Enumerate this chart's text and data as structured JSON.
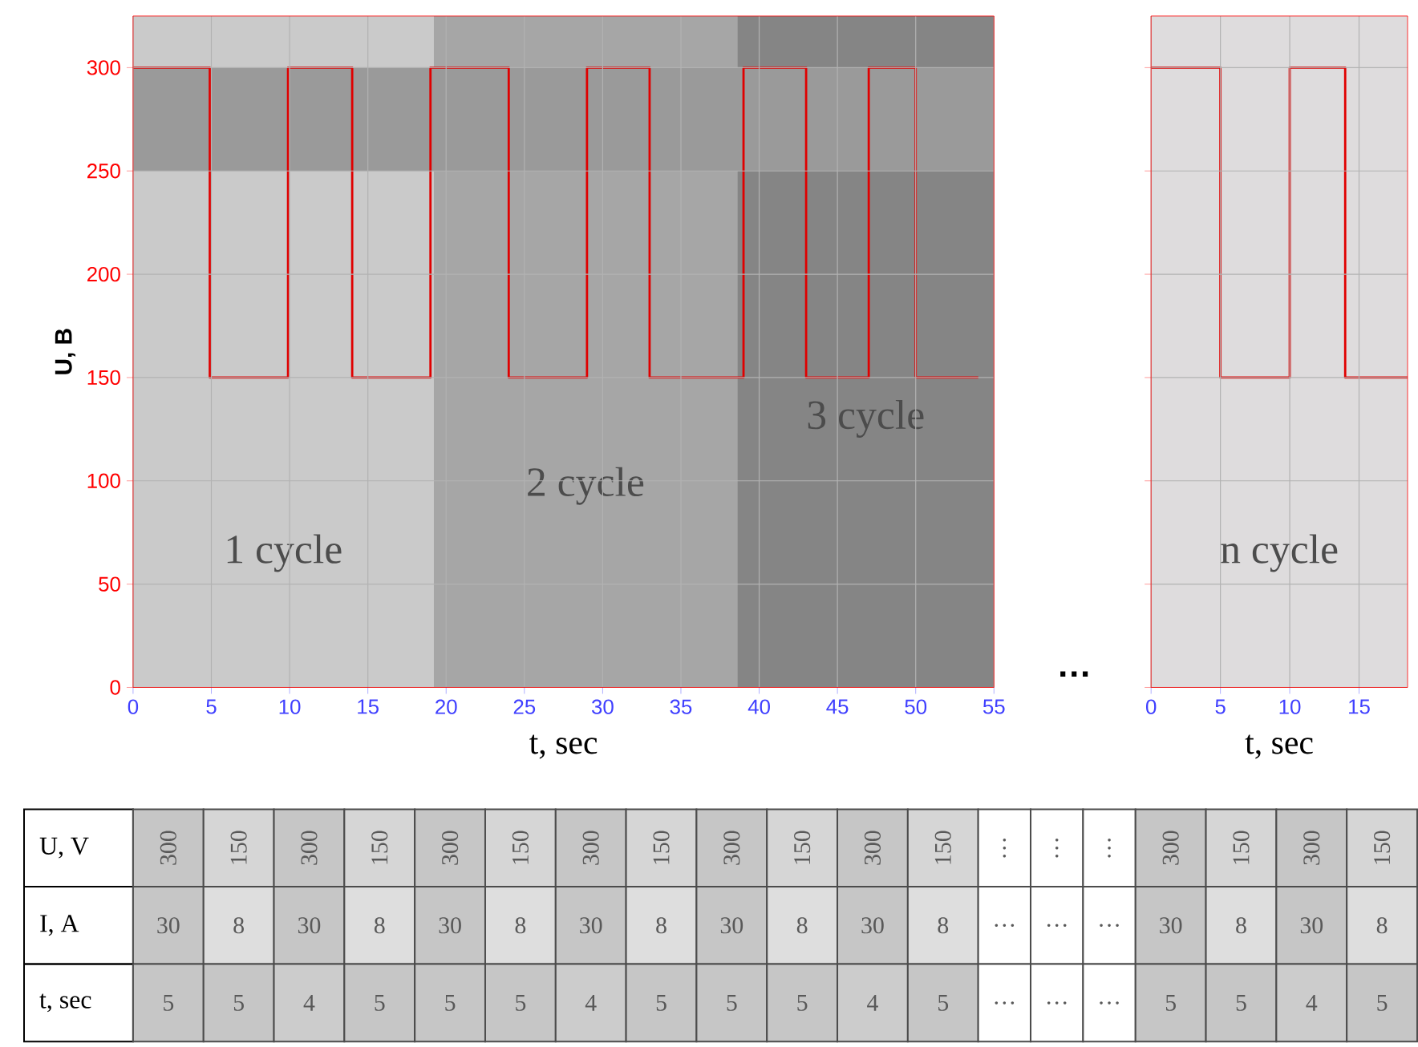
{
  "chart_data": [
    {
      "type": "step",
      "ylabel": "U, B",
      "xlabel": "t, sec",
      "xlim": [
        0,
        55
      ],
      "ylim": [
        0,
        325
      ],
      "xticks": [
        0,
        5,
        10,
        15,
        20,
        25,
        30,
        35,
        40,
        45,
        50,
        55
      ],
      "yticks": [
        0,
        50,
        100,
        150,
        200,
        250,
        300
      ],
      "grid": true,
      "bands": [
        {
          "axis": "x",
          "from": 0,
          "to": 19.2,
          "label": "1 cycle",
          "color": "#cacaca"
        },
        {
          "axis": "x",
          "from": 19.2,
          "to": 38.6,
          "label": "2 cycle",
          "color": "#a6a6a6"
        },
        {
          "axis": "x",
          "from": 38.6,
          "to": 55,
          "label": "3 cycle",
          "color": "#858585"
        },
        {
          "axis": "y",
          "from": 250,
          "to": 300,
          "color": "#9a9a9a"
        }
      ],
      "series": [
        {
          "color": "#e00000",
          "x": [
            0,
            4.9,
            9.9,
            14,
            19,
            24,
            29,
            33,
            39,
            43,
            47,
            50,
            54
          ],
          "values": [
            300,
            150,
            300,
            150,
            300,
            150,
            300,
            150,
            300,
            150,
            300,
            150,
            150
          ]
        }
      ]
    },
    {
      "type": "step",
      "xlabel": "t, sec",
      "xlim": [
        0,
        18.5
      ],
      "ylim": [
        0,
        325
      ],
      "xticks": [
        0,
        5,
        10,
        15
      ],
      "yticks": [
        0,
        50,
        100,
        150,
        200,
        250,
        300
      ],
      "grid": true,
      "tick_labels": "x",
      "annotations": [
        "…"
      ],
      "bands": [
        {
          "axis": "x",
          "from": 0,
          "to": 18.5,
          "label": "n cycle",
          "color": "#dedcdd"
        }
      ],
      "series": [
        {
          "color": "#e00000",
          "x": [
            0,
            5,
            10,
            14,
            18.5
          ],
          "values": [
            300,
            150,
            300,
            150,
            150
          ]
        }
      ]
    },
    {
      "type": "heatmap",
      "categories": [
        null,
        null,
        null,
        null,
        null,
        null,
        null,
        null,
        null,
        null,
        null,
        null,
        null,
        null,
        null,
        null,
        null,
        null,
        null
      ],
      "y_categories": [
        "U, V",
        "I, A",
        "t, sec"
      ],
      "cells": [
        [
          300,
          150,
          300,
          150,
          300,
          150,
          300,
          150,
          300,
          150,
          300,
          150,
          null,
          null,
          null,
          300,
          150,
          300,
          150
        ],
        [
          30,
          8,
          30,
          8,
          30,
          8,
          30,
          8,
          30,
          8,
          30,
          8,
          null,
          null,
          null,
          30,
          8,
          30,
          8
        ],
        [
          5,
          5,
          4,
          5,
          5,
          5,
          4,
          5,
          5,
          5,
          4,
          5,
          null,
          null,
          null,
          5,
          5,
          4,
          5
        ]
      ],
      "cell_labels": [
        [
          "300",
          "150",
          "300",
          "150",
          "300",
          "150",
          "300",
          "150",
          "300",
          "150",
          "300",
          "150",
          "…",
          "…",
          "…",
          "300",
          "150",
          "300",
          "150"
        ],
        [
          "30",
          "8",
          "30",
          "8",
          "30",
          "8",
          "30",
          "8",
          "30",
          "8",
          "30",
          "8",
          "…",
          "…",
          "…",
          "30",
          "8",
          "30",
          "8"
        ],
        [
          "5",
          "5",
          "4",
          "5",
          "5",
          "5",
          "4",
          "5",
          "5",
          "5",
          "4",
          "5",
          "…",
          "…",
          "…",
          "5",
          "5",
          "4",
          "5"
        ]
      ]
    }
  ]
}
